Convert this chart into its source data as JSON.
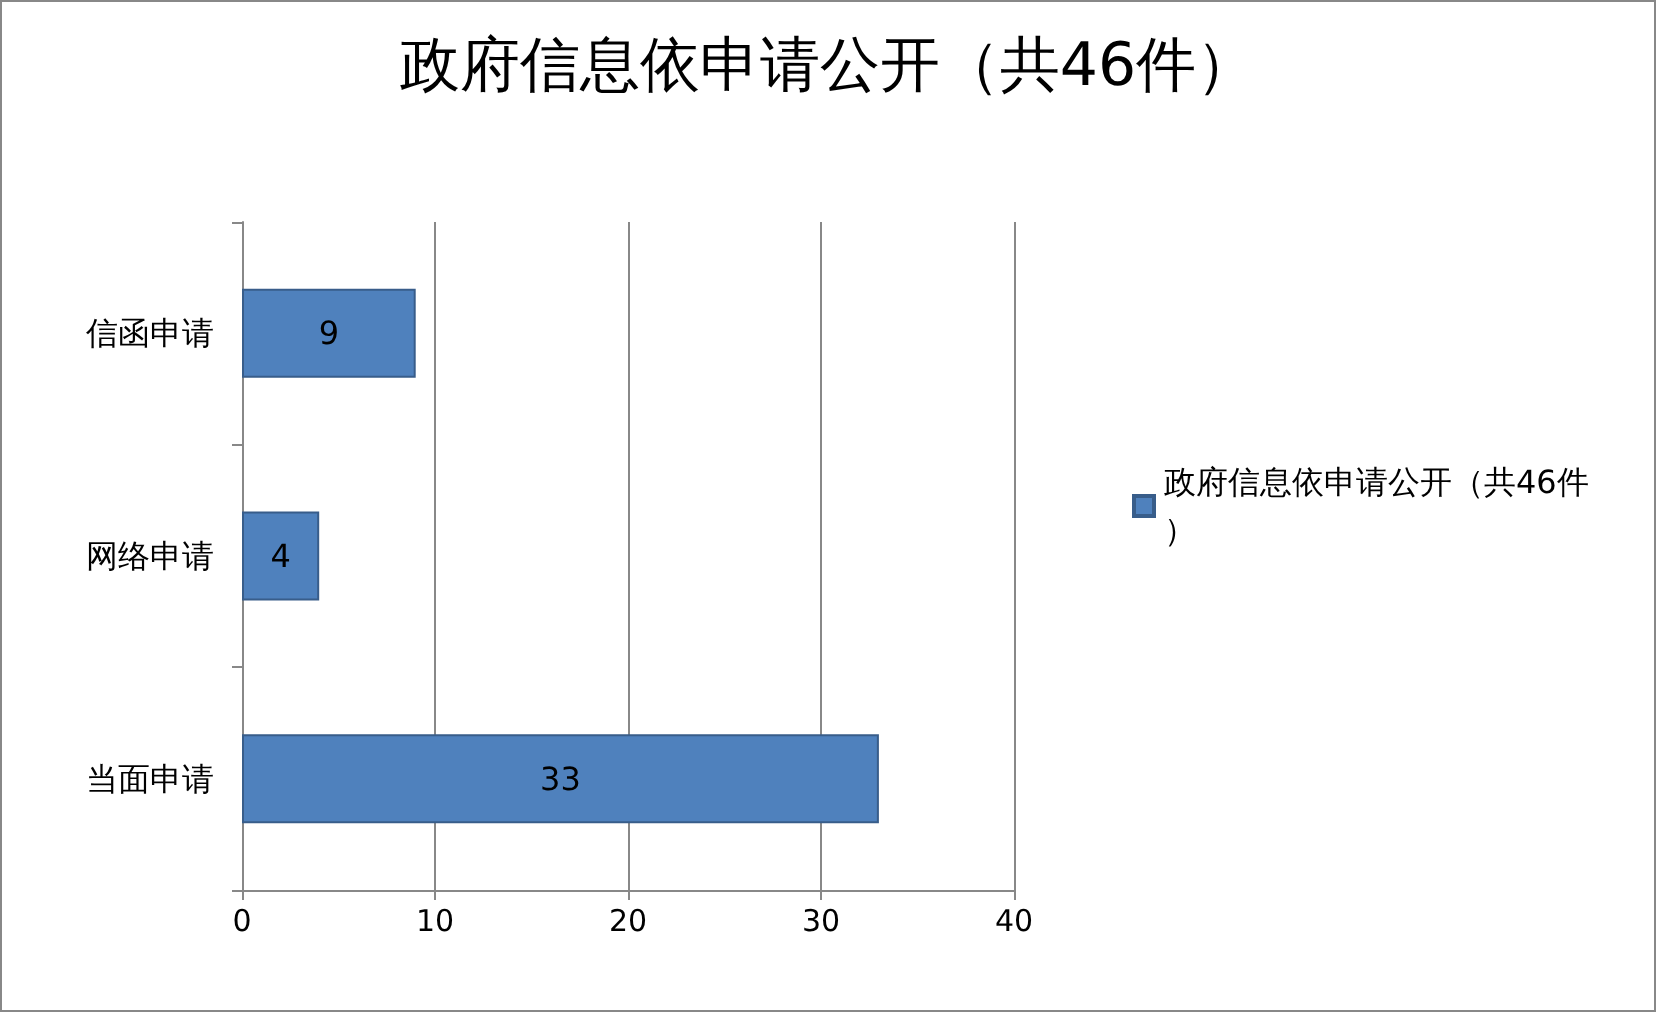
{
  "chart_data": {
    "type": "bar",
    "orientation": "horizontal",
    "title": "政府信息依申请公开（共46件）",
    "categories": [
      "信函申请",
      "网络申请",
      "当面申请"
    ],
    "series": [
      {
        "name": "政府信息依申请公开（共46件）",
        "color": "#4f81bd",
        "values": [
          9,
          4,
          33
        ]
      }
    ],
    "xlim": [
      0,
      40
    ],
    "xticks": [
      0,
      10,
      20,
      30,
      40
    ],
    "grid": "x",
    "legend": "right",
    "data_labels": true
  }
}
